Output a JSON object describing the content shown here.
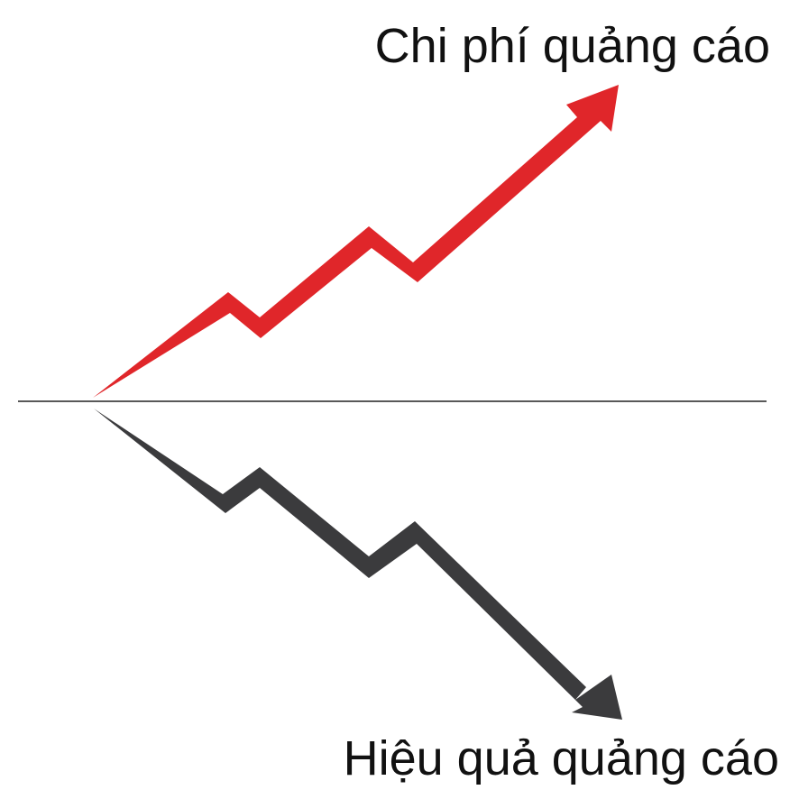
{
  "labels": {
    "top": "Chi phí quảng cáo",
    "bottom": "Hiệu quả quảng cáo"
  },
  "colors": {
    "up_arrow": "#e0262a",
    "down_arrow": "#3b3b3d",
    "baseline": "#222222",
    "text": "#111111",
    "background": "#ffffff"
  },
  "icons": {
    "up_arrow": "zigzag-rising-arrow",
    "down_arrow": "zigzag-falling-arrow"
  }
}
